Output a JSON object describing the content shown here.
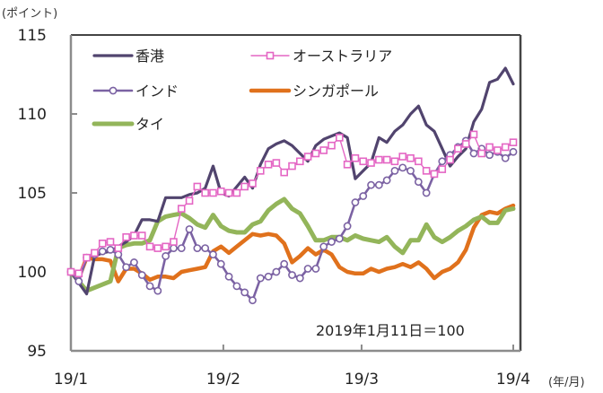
{
  "chart_data": {
    "type": "line",
    "title": "",
    "ylabel": "(ポイント)",
    "xlabel": "(年/月)",
    "ylim": [
      95,
      115
    ],
    "yticks": [
      "95",
      "100",
      "105",
      "110",
      "115"
    ],
    "ytick_values": [
      95,
      100,
      105,
      110,
      115
    ],
    "xlim": [
      0,
      56
    ],
    "xticks": [
      {
        "label": "19/1",
        "value": 0
      },
      {
        "label": "19/2",
        "value": 19.3
      },
      {
        "label": "19/3",
        "value": 36.8
      },
      {
        "label": "19/4",
        "value": 56
      }
    ],
    "grid": false,
    "legend_position": "top-left",
    "annotation": "2019年1月11日＝100",
    "series": [
      {
        "name": "香港",
        "color": "#51446e",
        "marker": "none",
        "values": [
          100.0,
          99.3,
          98.6,
          101.0,
          101.2,
          101.3,
          101.6,
          101.9,
          102.3,
          103.3,
          103.3,
          103.2,
          104.7,
          104.7,
          104.7,
          104.9,
          105.0,
          105.3,
          106.7,
          105.0,
          104.8,
          105.4,
          106.0,
          105.3,
          106.8,
          107.8,
          108.1,
          108.3,
          108.0,
          107.5,
          107.0,
          108.0,
          108.4,
          108.6,
          108.8,
          108.5,
          105.9,
          106.4,
          106.9,
          108.5,
          108.2,
          108.9,
          109.3,
          110.0,
          110.5,
          109.3,
          108.9,
          107.8,
          106.7,
          107.3,
          107.8,
          109.5,
          110.3,
          112.0,
          112.2,
          112.9,
          111.9
        ]
      },
      {
        "name": "オーストラリア",
        "color": "#e466c4",
        "marker": "square",
        "values": [
          100.0,
          99.9,
          100.9,
          101.2,
          101.8,
          101.9,
          101.5,
          102.2,
          102.3,
          102.3,
          101.6,
          101.5,
          101.6,
          101.9,
          104.0,
          104.5,
          105.4,
          105.0,
          105.0,
          105.1,
          105.0,
          105.0,
          105.4,
          105.6,
          106.4,
          106.8,
          106.9,
          106.3,
          106.7,
          107.0,
          107.3,
          107.5,
          107.7,
          108.0,
          108.5,
          106.8,
          107.2,
          107.0,
          106.9,
          107.1,
          107.1,
          107.0,
          107.3,
          107.2,
          107.0,
          106.4,
          106.2,
          106.5,
          107.1,
          107.8,
          108.1,
          108.7,
          107.5,
          107.9,
          107.7,
          107.9,
          108.2
        ]
      },
      {
        "name": "インド",
        "color": "#7b62a3",
        "marker": "circle",
        "values": [
          100.0,
          99.4,
          100.9,
          101.1,
          101.3,
          101.4,
          101.1,
          100.3,
          100.6,
          99.8,
          99.1,
          98.8,
          101.0,
          101.5,
          101.5,
          102.7,
          101.5,
          101.5,
          101.1,
          100.5,
          99.7,
          99.1,
          98.7,
          98.2,
          99.6,
          99.7,
          100.0,
          100.5,
          99.8,
          99.6,
          100.2,
          100.2,
          101.6,
          101.9,
          102.1,
          102.9,
          104.4,
          104.8,
          105.5,
          105.5,
          105.8,
          106.4,
          106.6,
          106.4,
          105.7,
          105.0,
          106.2,
          107.0,
          107.4,
          107.9,
          108.3,
          107.5,
          107.8,
          107.4,
          107.6,
          107.2,
          107.6
        ]
      },
      {
        "name": "シンガポール",
        "color": "#e0711c",
        "marker": "none",
        "values": [
          100.0,
          99.6,
          100.9,
          100.8,
          100.8,
          100.7,
          99.4,
          100.2,
          100.2,
          99.9,
          99.5,
          99.7,
          99.7,
          99.6,
          100.0,
          100.1,
          100.2,
          100.3,
          101.3,
          101.6,
          101.2,
          101.6,
          102.0,
          102.4,
          102.3,
          102.4,
          102.3,
          101.8,
          100.6,
          101.0,
          101.5,
          101.1,
          101.4,
          101.1,
          100.3,
          100.0,
          99.9,
          99.9,
          100.2,
          100.0,
          100.2,
          100.3,
          100.5,
          100.3,
          100.6,
          100.2,
          99.6,
          100.0,
          100.2,
          100.6,
          101.4,
          102.8,
          103.6,
          103.8,
          103.7,
          104.0,
          104.2
        ]
      },
      {
        "name": "タイ",
        "color": "#93b55a",
        "marker": "none",
        "values": [
          100.0,
          99.4,
          98.8,
          99.0,
          99.2,
          99.4,
          101.5,
          101.7,
          101.8,
          101.8,
          102.0,
          103.2,
          103.5,
          103.6,
          103.7,
          103.4,
          103.0,
          102.8,
          103.6,
          102.9,
          102.6,
          102.5,
          102.5,
          103.0,
          103.2,
          103.9,
          104.3,
          104.6,
          104.0,
          103.7,
          102.9,
          102.0,
          102.0,
          102.2,
          102.2,
          102.0,
          102.3,
          102.1,
          102.0,
          101.9,
          102.2,
          101.6,
          101.2,
          102.0,
          102.0,
          103.0,
          102.2,
          101.9,
          102.2,
          102.6,
          102.9,
          103.3,
          103.5,
          103.1,
          103.1,
          103.9,
          104.0
        ]
      }
    ]
  }
}
